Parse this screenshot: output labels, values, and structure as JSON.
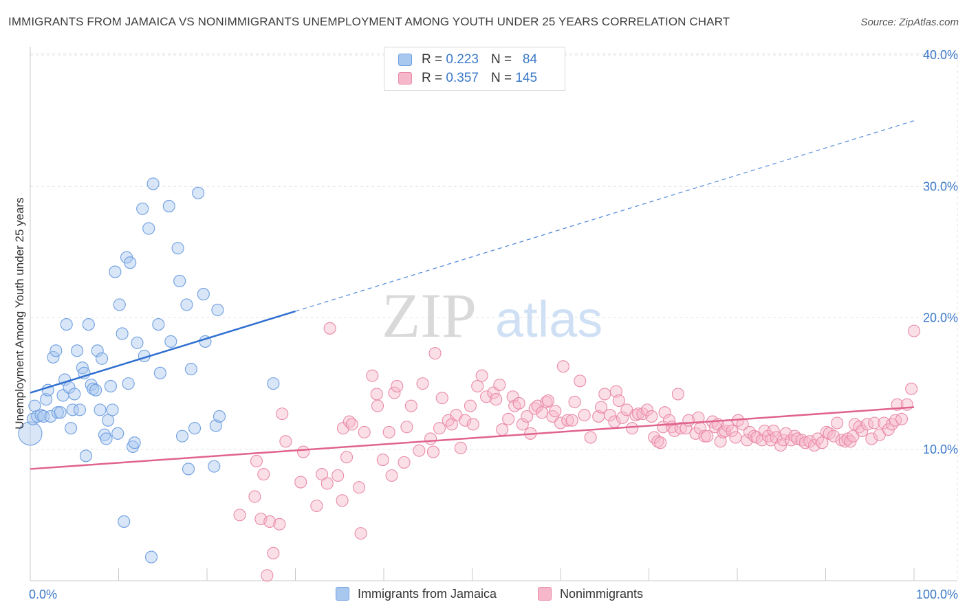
{
  "title": "IMMIGRANTS FROM JAMAICA VS NONIMMIGRANTS UNEMPLOYMENT AMONG YOUTH UNDER 25 YEARS CORRELATION CHART",
  "source": "Source: ZipAtlas.com",
  "watermark": {
    "zip": "ZIP",
    "atlas": "atlas"
  },
  "legend": {
    "r_label": "R =",
    "n_label": "N =",
    "series": [
      {
        "r": "0.223",
        "n": "84",
        "color": "#a9c8f0",
        "border": "#6f9fe0"
      },
      {
        "r": "0.357",
        "n": "145",
        "color": "#f6b7ca",
        "border": "#e98aa8"
      }
    ]
  },
  "bottom_legend": [
    "Immigrants from Jamaica",
    "Nonimmigrants"
  ],
  "chart_data": {
    "type": "scatter",
    "title": "IMMIGRANTS FROM JAMAICA VS NONIMMIGRANTS UNEMPLOYMENT AMONG YOUTH UNDER 25 YEARS CORRELATION CHART",
    "xlabel": "",
    "ylabel": "Unemployment Among Youth under 25 years",
    "xlim": [
      0,
      100
    ],
    "ylim": [
      0,
      40
    ],
    "x_tick_labels": [
      "0.0%",
      "100.0%"
    ],
    "y_ticks": [
      10,
      20,
      30,
      40
    ],
    "y_tick_labels": [
      "10.0%",
      "20.0%",
      "30.0%",
      "40.0%"
    ],
    "grid": true,
    "legend_position": "top-center",
    "series": [
      {
        "name": "Immigrants from Jamaica",
        "color": "#6f9fe0",
        "fill": "#a9c8f0",
        "trend": {
          "x0": 0,
          "y0": 14.3,
          "x1": 30,
          "y1": 20.5,
          "dashed_to_x": 100,
          "dashed_to_y": 35.0
        },
        "points": [
          [
            0,
            11.2
          ],
          [
            0.3,
            12.3
          ],
          [
            0.5,
            13.3
          ],
          [
            0.8,
            12.5
          ],
          [
            1.2,
            12.6
          ],
          [
            1.5,
            12.5
          ],
          [
            1.8,
            13.8
          ],
          [
            2,
            14.5
          ],
          [
            2.3,
            12.5
          ],
          [
            2.6,
            17.0
          ],
          [
            2.9,
            17.5
          ],
          [
            3.1,
            12.8
          ],
          [
            3.4,
            12.8
          ],
          [
            3.7,
            14.1
          ],
          [
            3.9,
            15.3
          ],
          [
            4.1,
            19.5
          ],
          [
            4.4,
            14.7
          ],
          [
            4.6,
            11.6
          ],
          [
            4.8,
            13.0
          ],
          [
            5.0,
            14.2
          ],
          [
            5.3,
            17.5
          ],
          [
            5.6,
            13.0
          ],
          [
            5.9,
            16.2
          ],
          [
            6.1,
            15.8
          ],
          [
            6.3,
            9.5
          ],
          [
            6.6,
            19.5
          ],
          [
            6.9,
            14.9
          ],
          [
            7.1,
            14.6
          ],
          [
            7.4,
            14.5
          ],
          [
            7.6,
            17.5
          ],
          [
            7.9,
            13.0
          ],
          [
            8.1,
            16.9
          ],
          [
            8.4,
            11.1
          ],
          [
            8.6,
            10.8
          ],
          [
            8.8,
            12.2
          ],
          [
            9.1,
            14.8
          ],
          [
            9.3,
            13.0
          ],
          [
            9.6,
            23.5
          ],
          [
            9.9,
            11.2
          ],
          [
            10.1,
            21.0
          ],
          [
            10.4,
            18.8
          ],
          [
            10.6,
            4.5
          ],
          [
            10.9,
            24.6
          ],
          [
            11.1,
            15.0
          ],
          [
            11.3,
            24.2
          ],
          [
            11.6,
            10.2
          ],
          [
            11.8,
            10.5
          ],
          [
            12.1,
            18.1
          ],
          [
            12.7,
            28.3
          ],
          [
            12.9,
            17.1
          ],
          [
            13.4,
            26.8
          ],
          [
            13.7,
            1.8
          ],
          [
            13.9,
            30.2
          ],
          [
            14.5,
            19.5
          ],
          [
            14.7,
            15.8
          ],
          [
            15.7,
            28.5
          ],
          [
            15.9,
            18.2
          ],
          [
            16.7,
            25.3
          ],
          [
            16.9,
            22.8
          ],
          [
            17.2,
            11.0
          ],
          [
            17.7,
            21.0
          ],
          [
            17.9,
            8.5
          ],
          [
            18.2,
            16.1
          ],
          [
            18.6,
            11.6
          ],
          [
            19.0,
            29.5
          ],
          [
            19.6,
            21.8
          ],
          [
            19.8,
            18.2
          ],
          [
            20.8,
            8.7
          ],
          [
            21.0,
            11.8
          ],
          [
            21.2,
            20.6
          ],
          [
            21.4,
            12.5
          ],
          [
            27.5,
            15.0
          ]
        ]
      },
      {
        "name": "Nonimmigrants",
        "color": "#e98aa8",
        "fill": "#f6b7ca",
        "trend": {
          "x0": 0,
          "y0": 8.5,
          "x1": 100,
          "y1": 13.2
        },
        "points": [
          [
            23.7,
            5.0
          ],
          [
            25.4,
            6.4
          ],
          [
            25.6,
            9.1
          ],
          [
            26.1,
            4.7
          ],
          [
            26.4,
            8.1
          ],
          [
            26.8,
            0.4
          ],
          [
            27.1,
            4.5
          ],
          [
            27.5,
            2.1
          ],
          [
            28.2,
            4.3
          ],
          [
            28.5,
            12.7
          ],
          [
            28.9,
            10.6
          ],
          [
            30.6,
            7.5
          ],
          [
            30.9,
            9.8
          ],
          [
            32.4,
            5.7
          ],
          [
            33.0,
            8.1
          ],
          [
            33.6,
            7.4
          ],
          [
            33.9,
            19.2
          ],
          [
            34.8,
            8.0
          ],
          [
            35.3,
            6.1
          ],
          [
            35.4,
            11.6
          ],
          [
            35.8,
            9.4
          ],
          [
            36.1,
            12.1
          ],
          [
            36.4,
            11.9
          ],
          [
            37.2,
            7.1
          ],
          [
            37.4,
            3.6
          ],
          [
            37.8,
            11.3
          ],
          [
            38.7,
            15.6
          ],
          [
            39.2,
            14.2
          ],
          [
            39.3,
            13.3
          ],
          [
            39.9,
            9.2
          ],
          [
            40.6,
            11.3
          ],
          [
            40.9,
            8.0
          ],
          [
            41.2,
            14.3
          ],
          [
            41.5,
            14.8
          ],
          [
            42.3,
            9.0
          ],
          [
            42.6,
            11.7
          ],
          [
            43.1,
            13.3
          ],
          [
            44.0,
            9.9
          ],
          [
            44.4,
            15.0
          ],
          [
            45.3,
            10.8
          ],
          [
            45.6,
            9.8
          ],
          [
            45.8,
            17.3
          ],
          [
            46.3,
            11.6
          ],
          [
            46.6,
            13.9
          ],
          [
            47.3,
            12.2
          ],
          [
            47.7,
            11.9
          ],
          [
            48.2,
            12.6
          ],
          [
            48.7,
            10.1
          ],
          [
            49.2,
            12.2
          ],
          [
            49.8,
            13.3
          ],
          [
            50.1,
            11.9
          ],
          [
            50.6,
            14.8
          ],
          [
            51.1,
            15.6
          ],
          [
            51.6,
            14.0
          ],
          [
            52.4,
            14.3
          ],
          [
            52.7,
            13.8
          ],
          [
            53.1,
            14.9
          ],
          [
            53.4,
            11.5
          ],
          [
            54.1,
            12.3
          ],
          [
            54.6,
            14.0
          ],
          [
            54.8,
            13.3
          ],
          [
            55.3,
            13.5
          ],
          [
            55.7,
            11.9
          ],
          [
            56.2,
            12.5
          ],
          [
            56.6,
            11.2
          ],
          [
            57.1,
            13.1
          ],
          [
            57.4,
            13.3
          ],
          [
            57.9,
            12.8
          ],
          [
            58.4,
            13.6
          ],
          [
            58.6,
            13.7
          ],
          [
            59.1,
            12.5
          ],
          [
            59.4,
            12.9
          ],
          [
            60.0,
            12.0
          ],
          [
            60.3,
            16.3
          ],
          [
            60.8,
            12.2
          ],
          [
            61.3,
            12.2
          ],
          [
            61.6,
            13.6
          ],
          [
            62.2,
            15.2
          ],
          [
            62.7,
            12.6
          ],
          [
            63.4,
            10.9
          ],
          [
            64.3,
            12.5
          ],
          [
            64.6,
            13.2
          ],
          [
            65.0,
            14.2
          ],
          [
            65.6,
            12.6
          ],
          [
            66.1,
            12.1
          ],
          [
            66.3,
            14.4
          ],
          [
            66.6,
            13.7
          ],
          [
            67.0,
            12.4
          ],
          [
            67.5,
            13.0
          ],
          [
            68.1,
            11.6
          ],
          [
            68.5,
            12.6
          ],
          [
            68.8,
            12.7
          ],
          [
            69.3,
            12.7
          ],
          [
            69.8,
            13.0
          ],
          [
            70.3,
            12.5
          ],
          [
            70.6,
            10.9
          ],
          [
            71.0,
            10.6
          ],
          [
            71.3,
            10.5
          ],
          [
            71.6,
            11.7
          ],
          [
            71.8,
            12.8
          ],
          [
            72.3,
            12.2
          ],
          [
            72.6,
            11.7
          ],
          [
            72.9,
            11.4
          ],
          [
            73.3,
            14.2
          ],
          [
            73.6,
            11.6
          ],
          [
            74.2,
            11.6
          ],
          [
            74.5,
            12.2
          ],
          [
            75.3,
            11.2
          ],
          [
            75.6,
            12.4
          ],
          [
            75.8,
            11.6
          ],
          [
            76.3,
            11.0
          ],
          [
            76.6,
            11.0
          ],
          [
            77.2,
            12.1
          ],
          [
            77.5,
            11.7
          ],
          [
            77.8,
            11.9
          ],
          [
            78.1,
            10.6
          ],
          [
            78.4,
            11.3
          ],
          [
            78.6,
            11.4
          ],
          [
            78.9,
            11.8
          ],
          [
            79.4,
            11.4
          ],
          [
            79.8,
            10.9
          ],
          [
            80.1,
            12.2
          ],
          [
            80.6,
            11.9
          ],
          [
            81.1,
            10.7
          ],
          [
            81.4,
            11.3
          ],
          [
            81.9,
            11.0
          ],
          [
            82.2,
            10.9
          ],
          [
            82.8,
            10.7
          ],
          [
            83.1,
            11.4
          ],
          [
            83.5,
            11.0
          ],
          [
            83.8,
            10.7
          ],
          [
            84.1,
            11.4
          ],
          [
            84.4,
            10.9
          ],
          [
            84.9,
            10.3
          ],
          [
            85.2,
            10.7
          ],
          [
            85.5,
            11.2
          ],
          [
            86.1,
            10.7
          ],
          [
            86.5,
            11.0
          ],
          [
            86.8,
            10.8
          ],
          [
            87.3,
            10.7
          ],
          [
            87.7,
            10.5
          ],
          [
            88.2,
            10.6
          ],
          [
            88.7,
            10.3
          ],
          [
            89.1,
            10.8
          ],
          [
            89.6,
            10.5
          ],
          [
            90.1,
            11.3
          ],
          [
            90.4,
            11.2
          ],
          [
            90.9,
            11.0
          ],
          [
            91.3,
            12.0
          ],
          [
            91.8,
            10.7
          ],
          [
            92.2,
            10.6
          ],
          [
            92.5,
            10.8
          ],
          [
            92.8,
            10.6
          ],
          [
            93.1,
            11.0
          ],
          [
            93.3,
            11.9
          ],
          [
            93.8,
            11.7
          ],
          [
            94.1,
            11.4
          ],
          [
            94.7,
            11.9
          ],
          [
            95.2,
            10.8
          ],
          [
            95.5,
            12.0
          ],
          [
            96.1,
            11.1
          ],
          [
            96.6,
            12.0
          ],
          [
            97.1,
            11.5
          ],
          [
            97.5,
            11.9
          ],
          [
            97.9,
            12.2
          ],
          [
            98.1,
            13.4
          ],
          [
            98.6,
            12.3
          ],
          [
            99.2,
            13.4
          ],
          [
            99.7,
            14.6
          ],
          [
            100,
            19.0
          ]
        ]
      }
    ]
  }
}
